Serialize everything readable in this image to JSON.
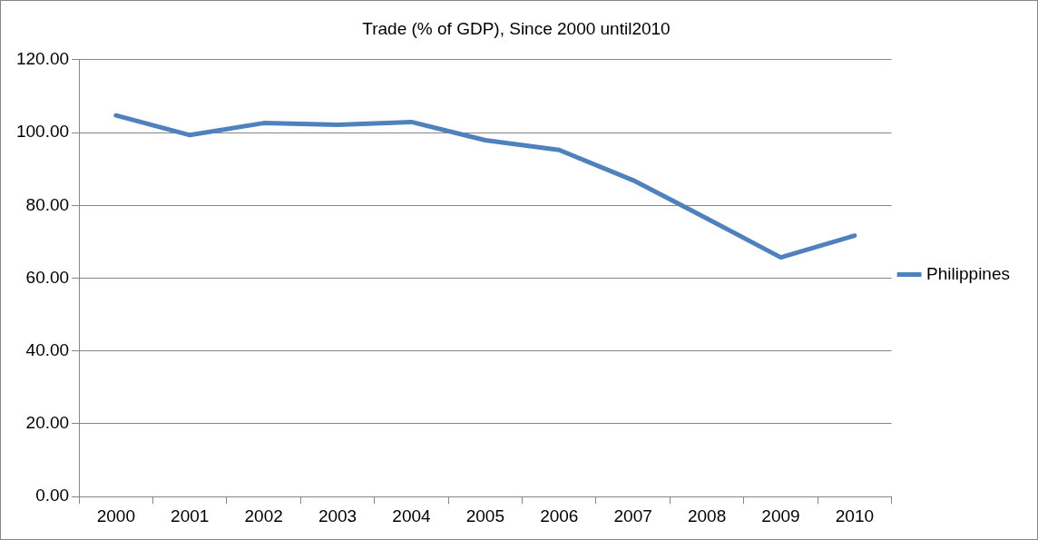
{
  "chart_data": {
    "type": "line",
    "title": "Trade (% of GDP), Since 2000 until2010",
    "categories": [
      "2000",
      "2001",
      "2002",
      "2003",
      "2004",
      "2005",
      "2006",
      "2007",
      "2008",
      "2009",
      "2010"
    ],
    "series": [
      {
        "name": "Philippines",
        "color": "#4f81bd",
        "values": [
          104.7,
          99.3,
          102.6,
          102.1,
          102.9,
          97.9,
          95.2,
          86.9,
          76.4,
          65.7,
          71.7
        ]
      }
    ],
    "ylim": [
      0,
      120
    ],
    "yticks": [
      {
        "value": 0,
        "label": "0.00"
      },
      {
        "value": 20,
        "label": "20.00"
      },
      {
        "value": 40,
        "label": "40.00"
      },
      {
        "value": 60,
        "label": "60.00"
      },
      {
        "value": 80,
        "label": "80.00"
      },
      {
        "value": 100,
        "label": "100.00"
      },
      {
        "value": 120,
        "label": "120.00"
      }
    ],
    "grid": "y",
    "legend": "right",
    "marker": "none",
    "line_style": "solid"
  }
}
